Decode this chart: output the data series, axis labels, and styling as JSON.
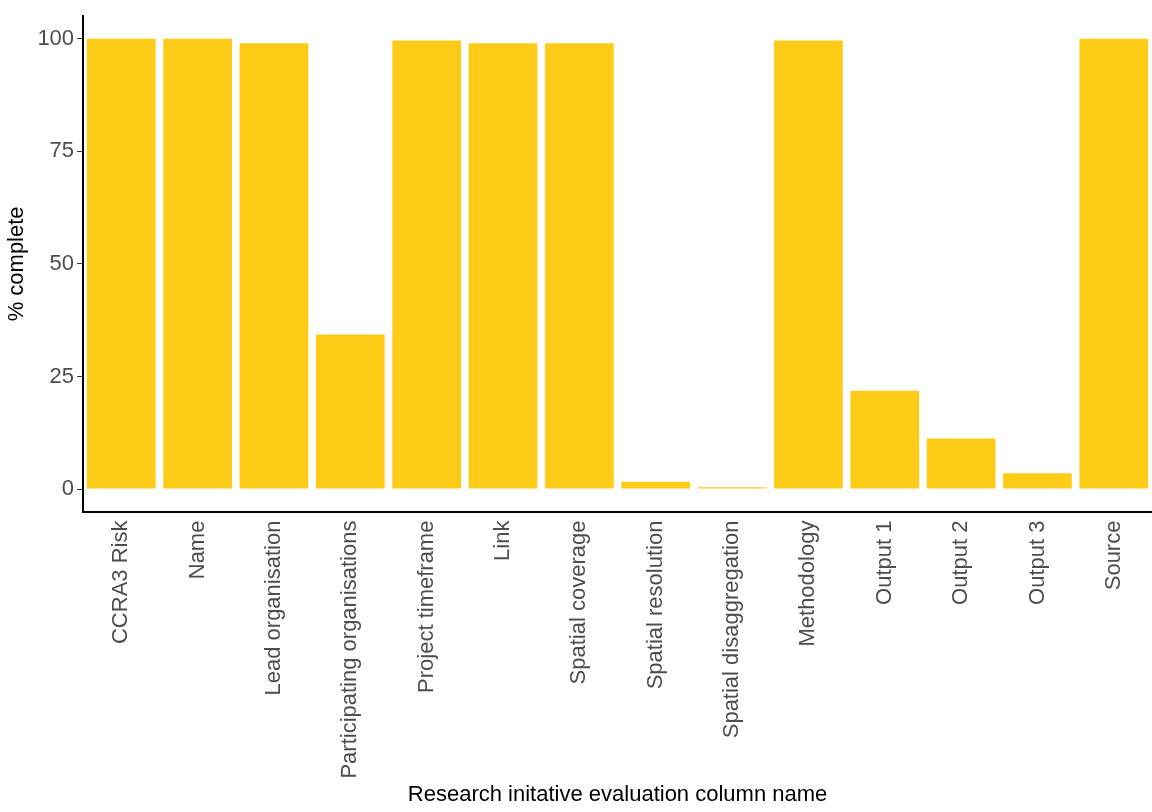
{
  "chart_data": {
    "type": "bar",
    "xlabel": "Research initative evaluation column name",
    "ylabel": "% complete",
    "categories": [
      "CCRA3 Risk",
      "Name",
      "Lead organisation",
      "Participating organisations",
      "Project timeframe",
      "Link",
      "Spatial coverage",
      "Spatial resolution",
      "Spatial disaggregation",
      "Methodology",
      "Output 1",
      "Output 2",
      "Output 3",
      "Source"
    ],
    "values": [
      100,
      100,
      99,
      34.3,
      99.6,
      99,
      99,
      1.6,
      0.4,
      99.6,
      21.8,
      11.2,
      3.5,
      100
    ],
    "color": "#fecb16",
    "ylim": [
      -5,
      105
    ],
    "yticks": [
      0,
      25,
      50,
      75,
      100
    ],
    "grid": false,
    "legend": false
  }
}
